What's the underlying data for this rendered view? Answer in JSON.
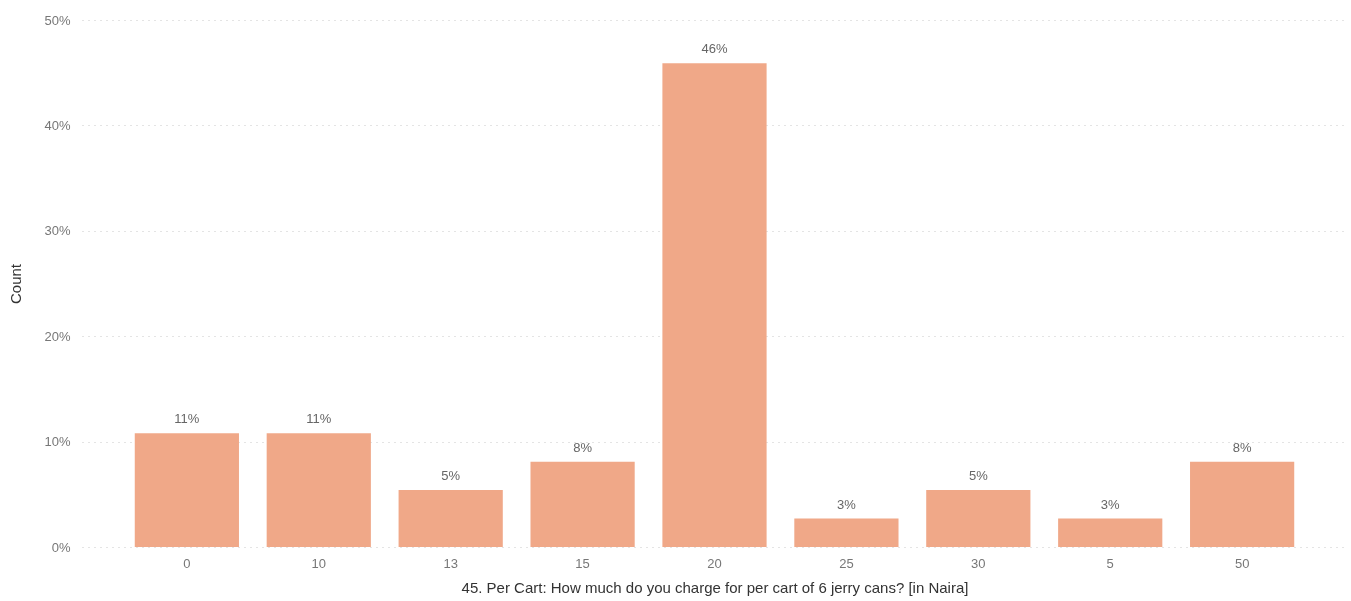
{
  "chart_data": {
    "type": "bar",
    "xlabel": "45. Per Cart: How much do you charge for per cart of 6 jerry cans? [in Naira]",
    "ylabel": "Count",
    "categories": [
      "0",
      "10",
      "13",
      "15",
      "20",
      "25",
      "30",
      "5",
      "50"
    ],
    "values": [
      10.8,
      10.8,
      5.4,
      8.1,
      45.9,
      2.7,
      5.4,
      2.7,
      8.1
    ],
    "value_labels": [
      "11%",
      "11%",
      "5%",
      "8%",
      "46%",
      "3%",
      "5%",
      "3%",
      "8%"
    ],
    "color": "#f0a888",
    "ylim": [
      0,
      50
    ],
    "yticks": [
      {
        "value": 0,
        "label": "0%"
      },
      {
        "value": 10,
        "label": "10%"
      },
      {
        "value": 20,
        "label": "20%"
      },
      {
        "value": 30,
        "label": "30%"
      },
      {
        "value": 40,
        "label": "40%"
      },
      {
        "value": 50,
        "label": "50%"
      }
    ],
    "grid": "y"
  }
}
